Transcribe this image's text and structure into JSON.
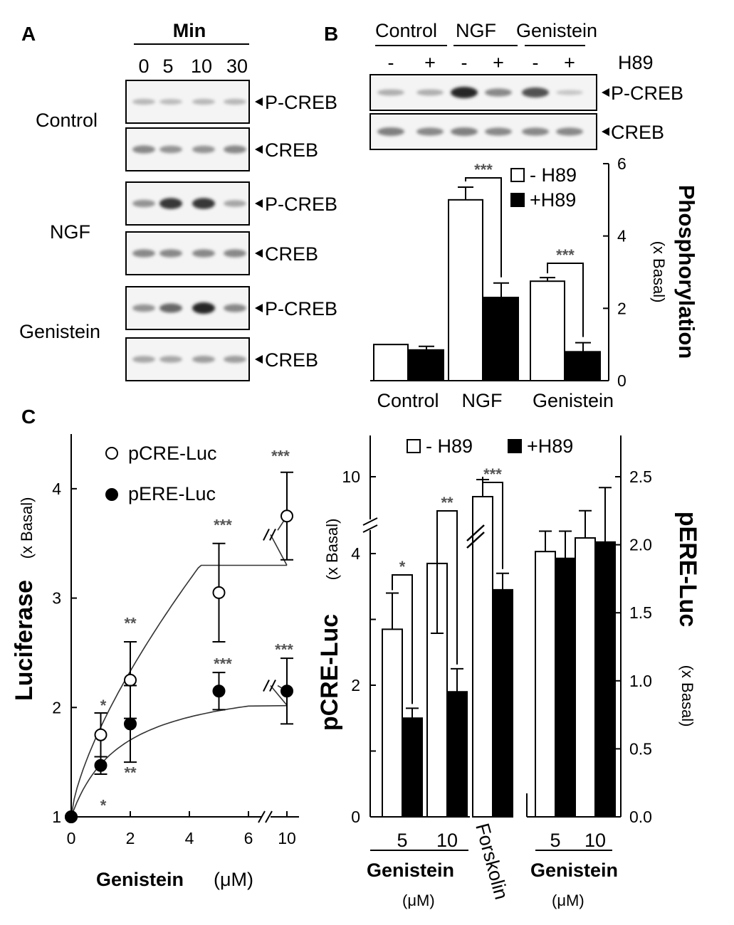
{
  "panels": {
    "a": "A",
    "b": "B",
    "c": "C"
  },
  "blot_a": {
    "header": "Min",
    "time_points": [
      "0",
      "5",
      "10",
      "30"
    ],
    "groups": [
      {
        "name": "Control",
        "rows": [
          {
            "label": "P-CREB",
            "intensities": [
              0.35,
              0.32,
              0.35,
              0.35
            ]
          },
          {
            "label": "CREB",
            "intensities": [
              0.6,
              0.55,
              0.55,
              0.6
            ]
          }
        ]
      },
      {
        "name": "NGF",
        "rows": [
          {
            "label": "P-CREB",
            "intensities": [
              0.55,
              0.95,
              0.95,
              0.45
            ]
          },
          {
            "label": "CREB",
            "intensities": [
              0.6,
              0.6,
              0.6,
              0.6
            ]
          }
        ]
      },
      {
        "name": "Genistein",
        "rows": [
          {
            "label": "P-CREB",
            "intensities": [
              0.55,
              0.75,
              1.0,
              0.6
            ]
          },
          {
            "label": "CREB",
            "intensities": [
              0.45,
              0.45,
              0.5,
              0.5
            ]
          }
        ]
      }
    ]
  },
  "blot_b": {
    "groups": [
      "Control",
      "NGF",
      "Genistein"
    ],
    "h89_label": "H89",
    "h89_signs": [
      "-",
      "+",
      "-",
      "+",
      "-",
      "+"
    ],
    "rows": [
      {
        "label": "P-CREB",
        "intensities": [
          0.4,
          0.4,
          1.0,
          0.6,
          0.85,
          0.25
        ]
      },
      {
        "label": "CREB",
        "intensities": [
          0.65,
          0.6,
          0.65,
          0.6,
          0.6,
          0.6
        ]
      }
    ]
  },
  "chart_data": [
    {
      "id": "B",
      "type": "bar",
      "categories": [
        "Control",
        "NGF",
        "Genistein"
      ],
      "series": [
        {
          "name": "- H89",
          "values": [
            1.0,
            5.0,
            2.75
          ],
          "errors": [
            0,
            0.35,
            0.1
          ],
          "color": "#ffffff"
        },
        {
          "name": "+H89",
          "values": [
            0.85,
            2.3,
            0.8
          ],
          "errors": [
            0.1,
            0.4,
            0.25
          ],
          "color": "#000000"
        }
      ],
      "ylabel": "Phosphorylation",
      "ylabel_unit": "(x Basal)",
      "ylim": [
        0,
        6
      ],
      "yticks": [
        "0",
        "2",
        "4",
        "6"
      ],
      "annotations": [
        "***",
        "***"
      ],
      "legend_position": "top-right"
    },
    {
      "id": "C-left",
      "type": "scatter",
      "x_ticks": [
        "0",
        "2",
        "4",
        "6",
        "10"
      ],
      "x": [
        0,
        1,
        2,
        5,
        10
      ],
      "series": [
        {
          "name": "pCRE-Luc",
          "marker": "open-circle",
          "y": [
            1.0,
            1.75,
            2.25,
            3.05,
            3.75
          ],
          "errors": [
            0,
            0.2,
            0.35,
            0.45,
            0.4
          ]
        },
        {
          "name": "pERE-Luc",
          "marker": "filled-circle",
          "y": [
            1.0,
            1.47,
            1.85,
            2.15,
            2.15
          ],
          "errors": [
            0,
            0.08,
            0.35,
            0.17,
            0.3
          ]
        }
      ],
      "stars_upper": [
        "*",
        "**",
        "***",
        "***"
      ],
      "stars_lower": [
        "*",
        "**",
        "***",
        "***"
      ],
      "xlabel": "Genistein",
      "xlabel_unit": "(μM)",
      "ylabel": "Luciferase",
      "ylabel_unit": "(x Basal)",
      "ylim": [
        1,
        4.5
      ],
      "yticks": [
        "1",
        "2",
        "3",
        "4"
      ],
      "legend_position": "top-left"
    },
    {
      "id": "C-right",
      "type": "bar",
      "left_axis": {
        "label": "pCRE-Luc",
        "unit": "(x Basal)",
        "ticks": [
          "0",
          "2",
          "4",
          "10"
        ]
      },
      "right_axis": {
        "label": "pERE-Luc",
        "unit": "(x Basal)",
        "ticks": [
          "0.0",
          "0.5",
          "1.0",
          "1.5",
          "2.0",
          "2.5"
        ]
      },
      "legend": [
        "- H89",
        "+H89"
      ],
      "pcre_groups": [
        {
          "label": "5",
          "minus_h89": 2.85,
          "minus_err": 0.55,
          "plus_h89": 1.5,
          "plus_err": 0.15,
          "star": "*"
        },
        {
          "label": "10",
          "minus_h89": 3.85,
          "minus_err": 0.65,
          "plus_h89": 1.9,
          "plus_err": 0.35,
          "star": "**"
        },
        {
          "label": "Forskolin",
          "minus_h89": 9.3,
          "minus_err": 0.6,
          "plus_h89": 3.45,
          "plus_err": 0.25,
          "star": "***"
        }
      ],
      "pere_groups": [
        {
          "label": "5",
          "minus_h89": 1.95,
          "minus_err": 0.15,
          "plus_h89": 1.9,
          "plus_err": 0.2
        },
        {
          "label": "10",
          "minus_h89": 2.05,
          "minus_err": 0.2,
          "plus_h89": 2.02,
          "plus_err": 0.4
        }
      ],
      "group_labels": {
        "genistein_left": "Genistein",
        "unit_left": "(μM)",
        "genistein_right": "Genistein",
        "unit_right": "(μM)"
      }
    }
  ]
}
